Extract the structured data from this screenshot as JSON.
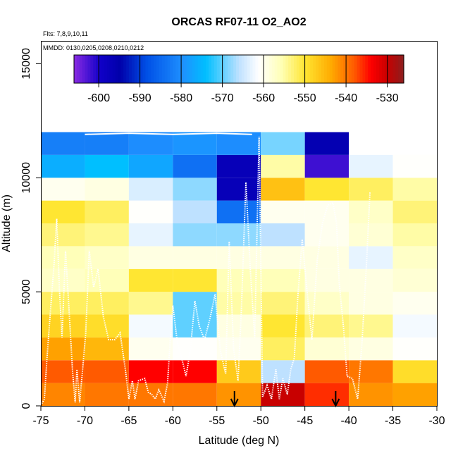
{
  "chart_data": {
    "type": "heatmap",
    "title": "ORCAS RF07-11 O2_AO2",
    "subtitle_flights": "Flts: 7,8,9,10,11",
    "subtitle_dates": "MMDD: 0130,0205,0208,0210,0212",
    "xlabel": "Latitude (deg N)",
    "ylabel": "Altitude (m)",
    "xlim": [
      -75,
      -30
    ],
    "ylim": [
      0,
      16000
    ],
    "xticks": [
      -75,
      -70,
      -65,
      -60,
      -55,
      -50,
      -45,
      -40,
      -35,
      -30
    ],
    "yticks": [
      0,
      5000,
      10000,
      15000
    ],
    "grid": false,
    "colorbar": {
      "min": -606,
      "max": -526,
      "ticks": [
        -600,
        -590,
        -580,
        -570,
        -560,
        -550,
        -540,
        -530
      ],
      "placement": "top"
    },
    "cell_width_deg": 5,
    "columns": [
      {
        "lat": -75,
        "cells": [
          [
            0,
            1000,
            -541
          ],
          [
            1000,
            2000,
            -538
          ],
          [
            2000,
            3000,
            -543
          ],
          [
            3000,
            4000,
            -548
          ],
          [
            4000,
            5000,
            -552
          ],
          [
            5000,
            6000,
            -557
          ],
          [
            6000,
            7000,
            -556
          ],
          [
            7000,
            8000,
            -553
          ],
          [
            8000,
            9000,
            -550
          ],
          [
            9000,
            10000,
            -560
          ],
          [
            10000,
            11000,
            -576
          ],
          [
            11000,
            12000,
            -582
          ]
        ]
      },
      {
        "lat": -70,
        "cells": [
          [
            0,
            1000,
            -540
          ],
          [
            1000,
            2000,
            -538
          ],
          [
            2000,
            3000,
            -545
          ],
          [
            3000,
            4000,
            -549
          ],
          [
            4000,
            5000,
            -552
          ],
          [
            5000,
            6000,
            -556
          ],
          [
            6000,
            7000,
            -557
          ],
          [
            7000,
            8000,
            -554
          ],
          [
            8000,
            9000,
            -552
          ],
          [
            9000,
            10000,
            -559
          ],
          [
            10000,
            11000,
            -574
          ],
          [
            11000,
            12000,
            -582
          ]
        ]
      },
      {
        "lat": -65,
        "cells": [
          [
            0,
            1000,
            -540
          ],
          [
            1000,
            2000,
            -534
          ],
          [
            2000,
            3000,
            -560
          ],
          [
            3000,
            4000,
            -562
          ],
          [
            4000,
            5000,
            -554
          ],
          [
            5000,
            6000,
            -550
          ],
          [
            6000,
            7000,
            -559
          ],
          [
            7000,
            8000,
            -563
          ],
          [
            8000,
            9000,
            -561
          ],
          [
            9000,
            10000,
            -564
          ],
          [
            10000,
            11000,
            -577
          ],
          [
            11000,
            12000,
            -580
          ]
        ]
      },
      {
        "lat": -60,
        "cells": [
          [
            0,
            1000,
            -540
          ],
          [
            1000,
            2000,
            -534
          ],
          [
            2000,
            3000,
            -561
          ],
          [
            3000,
            4000,
            -570
          ],
          [
            4000,
            5000,
            -570
          ],
          [
            5000,
            6000,
            -550
          ],
          [
            6000,
            7000,
            -559
          ],
          [
            7000,
            8000,
            -568
          ],
          [
            8000,
            9000,
            -566
          ],
          [
            9000,
            10000,
            -568
          ],
          [
            10000,
            11000,
            -584
          ],
          [
            11000,
            12000,
            -579
          ]
        ]
      },
      {
        "lat": -55,
        "cells": [
          [
            0,
            1000,
            -542
          ],
          [
            1000,
            2000,
            -547
          ],
          [
            2000,
            3000,
            -560
          ],
          [
            3000,
            4000,
            -559
          ],
          [
            4000,
            5000,
            -555
          ],
          [
            5000,
            6000,
            -556
          ],
          [
            6000,
            7000,
            -559
          ],
          [
            7000,
            8000,
            -568
          ],
          [
            8000,
            9000,
            -584
          ],
          [
            9000,
            10000,
            -597
          ],
          [
            10000,
            11000,
            -597
          ],
          [
            11000,
            12000,
            -580
          ]
        ]
      },
      {
        "lat": -50,
        "cells": [
          [
            0,
            1000,
            -530
          ],
          [
            1000,
            2000,
            -566
          ],
          [
            2000,
            3000,
            -552
          ],
          [
            3000,
            4000,
            -550
          ],
          [
            4000,
            5000,
            -553
          ],
          [
            5000,
            6000,
            -556
          ],
          [
            6000,
            7000,
            -559
          ],
          [
            7000,
            8000,
            -566
          ],
          [
            8000,
            9000,
            -560
          ],
          [
            9000,
            10000,
            -546
          ],
          [
            10000,
            11000,
            -555
          ],
          [
            11000,
            12000,
            -569
          ]
        ]
      },
      {
        "lat": -45,
        "cells": [
          [
            0,
            1000,
            -536
          ],
          [
            1000,
            2000,
            -538
          ],
          [
            2000,
            3000,
            -558
          ],
          [
            3000,
            4000,
            -553
          ],
          [
            4000,
            5000,
            -557
          ],
          [
            5000,
            6000,
            -559
          ],
          [
            6000,
            7000,
            -559
          ],
          [
            7000,
            8000,
            -560
          ],
          [
            8000,
            9000,
            -560
          ],
          [
            9000,
            10000,
            -550
          ],
          [
            10000,
            11000,
            -602
          ],
          [
            11000,
            12000,
            -596
          ]
        ]
      },
      {
        "lat": -40,
        "cells": [
          [
            0,
            1000,
            -542
          ],
          [
            1000,
            2000,
            -540
          ],
          [
            2000,
            3000,
            -559
          ],
          [
            3000,
            4000,
            -554
          ],
          [
            4000,
            5000,
            -559
          ],
          [
            5000,
            6000,
            -559
          ],
          [
            6000,
            7000,
            -563
          ],
          [
            7000,
            8000,
            -558
          ],
          [
            8000,
            9000,
            -557
          ],
          [
            9000,
            10000,
            -552
          ],
          [
            10000,
            11000,
            -563
          ]
        ]
      },
      {
        "lat": -35,
        "cells": [
          [
            0,
            1000,
            -543
          ],
          [
            1000,
            2000,
            -549
          ],
          [
            2000,
            3000,
            -561
          ],
          [
            3000,
            4000,
            -562
          ],
          [
            4000,
            5000,
            -560
          ],
          [
            5000,
            6000,
            -558
          ],
          [
            6000,
            7000,
            -557
          ],
          [
            7000,
            8000,
            -555
          ],
          [
            8000,
            9000,
            -553
          ],
          [
            9000,
            10000,
            -555
          ],
          [
            10000,
            11000,
            -561
          ]
        ]
      }
    ],
    "flight_tracks": [
      [
        [
          -74.9,
          100
        ],
        [
          -74.6,
          300
        ],
        [
          -74.3,
          2100
        ],
        [
          -73.9,
          4200
        ],
        [
          -73.5,
          6200
        ],
        [
          -73.2,
          8200
        ],
        [
          -72.9,
          5200
        ],
        [
          -72.6,
          3000
        ],
        [
          -72.2,
          6800
        ],
        [
          -71.8,
          4200
        ],
        [
          -71.4,
          1500
        ],
        [
          -71.1,
          150
        ],
        [
          -70.9,
          1600
        ],
        [
          -70.6,
          150
        ],
        [
          -70.3,
          1400
        ],
        [
          -69.9,
          3200
        ],
        [
          -69.5,
          6800
        ],
        [
          -69.0,
          5200
        ],
        [
          -68.5,
          6000
        ],
        [
          -67.9,
          3900
        ],
        [
          -67.3,
          2900
        ],
        [
          -66.6,
          2900
        ],
        [
          -66.0,
          3200
        ],
        [
          -65.4,
          1600
        ],
        [
          -65.0,
          300
        ],
        [
          -64.6,
          1100
        ],
        [
          -64.3,
          300
        ],
        [
          -63.9,
          1100
        ],
        [
          -63.2,
          1200
        ],
        [
          -62.8,
          600
        ],
        [
          -62.4,
          500
        ],
        [
          -62.0,
          300
        ],
        [
          -61.6,
          700
        ],
        [
          -61.0,
          200
        ],
        [
          -60.6,
          1000
        ],
        [
          -60.3,
          2900
        ],
        [
          -60.0,
          4400
        ],
        [
          -59.5,
          2800
        ],
        [
          -59.0,
          2100
        ],
        [
          -58.5,
          1300
        ],
        [
          -58.0,
          2500
        ],
        [
          -57.5,
          4600
        ],
        [
          -57.0,
          3500
        ],
        [
          -56.4,
          2900
        ],
        [
          -55.8,
          3800
        ],
        [
          -55.2,
          4900
        ],
        [
          -54.6,
          2400
        ],
        [
          -54.0,
          1400
        ],
        [
          -53.6,
          7200
        ],
        [
          -53.1,
          2500
        ],
        [
          -52.6,
          1100
        ],
        [
          -52.2,
          4300
        ],
        [
          -51.7,
          9800
        ],
        [
          -51.2,
          6000
        ],
        [
          -50.7,
          3000
        ],
        [
          -50.2,
          11800
        ],
        [
          -49.8,
          400
        ],
        [
          -49.3,
          900
        ],
        [
          -48.8,
          300
        ],
        [
          -48.3,
          1600
        ],
        [
          -47.9,
          300
        ],
        [
          -47.5,
          1200
        ],
        [
          -47.0,
          500
        ],
        [
          -46.6,
          1600
        ],
        [
          -46.2,
          2100
        ],
        [
          -45.8,
          4800
        ],
        [
          -45.3,
          7300
        ],
        [
          -44.8,
          5200
        ],
        [
          -44.2,
          2900
        ],
        [
          -43.6,
          6400
        ],
        [
          -43.0,
          8000
        ],
        [
          -42.4,
          8800
        ],
        [
          -41.8,
          8900
        ],
        [
          -41.4,
          8000
        ],
        [
          -41.1,
          5400
        ],
        [
          -40.6,
          3400
        ],
        [
          -40.2,
          1300
        ],
        [
          -39.6,
          1200
        ],
        [
          -39.0,
          300
        ],
        [
          -38.5,
          2800
        ],
        [
          -38.0,
          6200
        ],
        [
          -37.6,
          9400
        ]
      ]
    ],
    "markers": [
      {
        "lat": -53.0,
        "type": "arrow-down"
      },
      {
        "lat": -41.5,
        "type": "arrow-down"
      }
    ]
  }
}
